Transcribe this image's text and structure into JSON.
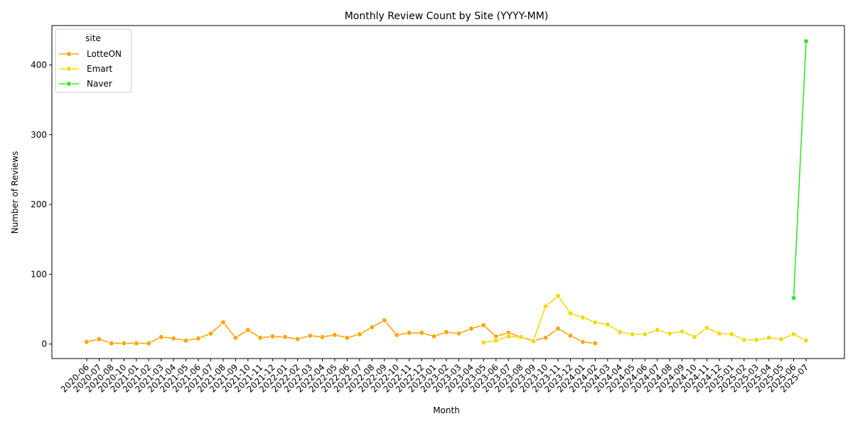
{
  "chart_data": {
    "type": "line",
    "title": "Monthly Review Count by Site (YYYY-MM)",
    "xlabel": "Month",
    "ylabel": "Number of Reviews",
    "ylim": [
      -20,
      450
    ],
    "yticks": [
      0,
      100,
      200,
      300,
      400
    ],
    "grid": false,
    "legend": {
      "title": "site",
      "placement": "top-left"
    },
    "categories": [
      "2020-06",
      "2020-07",
      "2020-08",
      "2020-10",
      "2021-01",
      "2021-02",
      "2021-03",
      "2021-04",
      "2021-05",
      "2021-06",
      "2021-07",
      "2021-08",
      "2021-09",
      "2021-10",
      "2021-11",
      "2021-12",
      "2022-01",
      "2022-02",
      "2022-03",
      "2022-04",
      "2022-05",
      "2022-06",
      "2022-07",
      "2022-08",
      "2022-09",
      "2022-10",
      "2022-11",
      "2022-12",
      "2023-01",
      "2023-02",
      "2023-03",
      "2023-04",
      "2023-05",
      "2023-06",
      "2023-07",
      "2023-08",
      "2023-09",
      "2023-10",
      "2023-11",
      "2023-12",
      "2024-01",
      "2024-02",
      "2024-03",
      "2024-04",
      "2024-05",
      "2024-06",
      "2024-07",
      "2024-08",
      "2024-09",
      "2024-10",
      "2024-11",
      "2024-12",
      "2025-01",
      "2025-02",
      "2025-03",
      "2025-04",
      "2025-05",
      "2025-06",
      "2025-07"
    ],
    "series": [
      {
        "name": "LotteON",
        "color": "#FFA500",
        "values": [
          3,
          7,
          1,
          1,
          1,
          1,
          10,
          8,
          5,
          8,
          15,
          31,
          9,
          20,
          9,
          11,
          10,
          7,
          12,
          10,
          13,
          9,
          14,
          24,
          34,
          13,
          16,
          16,
          11,
          17,
          15,
          22,
          27,
          11,
          16,
          10,
          5,
          9,
          22,
          12,
          3,
          1,
          null,
          null,
          null,
          null,
          null,
          null,
          null,
          null,
          null,
          null,
          null,
          null,
          null,
          null,
          null,
          null,
          null
        ]
      },
      {
        "name": "Emart",
        "color": "#F2D80F",
        "values": [
          null,
          null,
          null,
          null,
          null,
          null,
          null,
          null,
          null,
          null,
          null,
          null,
          null,
          null,
          null,
          null,
          null,
          null,
          null,
          null,
          null,
          null,
          null,
          null,
          null,
          null,
          null,
          null,
          null,
          null,
          null,
          null,
          2,
          5,
          11,
          10,
          4,
          54,
          69,
          44,
          38,
          31,
          28,
          17,
          14,
          14,
          20,
          15,
          18,
          10,
          23,
          15,
          14,
          6,
          6,
          9,
          7,
          14,
          5
        ]
      },
      {
        "name": "Naver",
        "color": "#2EE82E",
        "values": [
          null,
          null,
          null,
          null,
          null,
          null,
          null,
          null,
          null,
          null,
          null,
          null,
          null,
          null,
          null,
          null,
          null,
          null,
          null,
          null,
          null,
          null,
          null,
          null,
          null,
          null,
          null,
          null,
          null,
          null,
          null,
          null,
          null,
          null,
          null,
          null,
          null,
          null,
          null,
          null,
          null,
          null,
          null,
          null,
          null,
          null,
          null,
          null,
          null,
          null,
          null,
          null,
          null,
          null,
          null,
          null,
          null,
          66,
          434
        ]
      }
    ]
  }
}
